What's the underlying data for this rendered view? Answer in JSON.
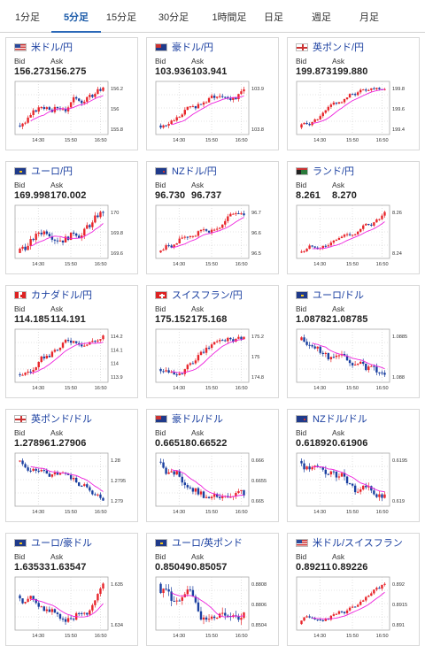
{
  "tabs": [
    "1分足",
    "5分足",
    "15分足",
    "30分足",
    "1時間足",
    "日足",
    "週足",
    "月足"
  ],
  "active_tab": 1,
  "labels": {
    "bid": "Bid",
    "ask": "Ask"
  },
  "colors": {
    "up": "#e8252b",
    "down": "#1a3fa0",
    "ma_pink": "#ee22dd",
    "ma_cyan": "#39b8d8",
    "pair": "#1a3fa0",
    "tab_active": "#1a5aa8"
  },
  "cards": [
    {
      "pair": "米ドル/円",
      "flag": "us",
      "bid": "156.273",
      "ask": "156.275",
      "yticks": [
        "156.2",
        "156",
        "155.8"
      ],
      "trend": "up"
    },
    {
      "pair": "豪ドル/円",
      "flag": "au",
      "bid": "103.936",
      "ask": "103.941",
      "yticks": [
        "103.9",
        "103.8"
      ],
      "trend": "up"
    },
    {
      "pair": "英ポンド/円",
      "flag": "gb",
      "bid": "199.873",
      "ask": "199.880",
      "yticks": [
        "199.8",
        "199.6",
        "199.4"
      ],
      "trend": "up"
    },
    {
      "pair": "ユーロ/円",
      "flag": "eu",
      "bid": "169.998",
      "ask": "170.002",
      "yticks": [
        "170",
        "169.8",
        "169.6"
      ],
      "trend": "up"
    },
    {
      "pair": "NZドル/円",
      "flag": "nz",
      "bid": "96.730",
      "ask": "96.737",
      "yticks": [
        "96.7",
        "96.6",
        "96.5"
      ],
      "trend": "up"
    },
    {
      "pair": "ランド/円",
      "flag": "za",
      "bid": "8.261",
      "ask": "8.270",
      "yticks": [
        "8.26",
        "8.24"
      ],
      "trend": "up"
    },
    {
      "pair": "カナダドル/円",
      "flag": "ca",
      "bid": "114.185",
      "ask": "114.191",
      "yticks": [
        "114.2",
        "114.1",
        "114",
        "113.9"
      ],
      "trend": "up"
    },
    {
      "pair": "スイスフラン/円",
      "flag": "ch",
      "bid": "175.152",
      "ask": "175.168",
      "yticks": [
        "175.2",
        "175",
        "174.8"
      ],
      "trend": "up"
    },
    {
      "pair": "ユーロ/ドル",
      "flag": "eu",
      "bid": "1.08782",
      "ask": "1.08785",
      "yticks": [
        "1.0885",
        "1.088"
      ],
      "trend": "down"
    },
    {
      "pair": "英ポンド/ドル",
      "flag": "gb",
      "bid": "1.27896",
      "ask": "1.27906",
      "yticks": [
        "1.28",
        "1.2795",
        "1.279"
      ],
      "trend": "down"
    },
    {
      "pair": "豪ドル/ドル",
      "flag": "au",
      "bid": "0.66518",
      "ask": "0.66522",
      "yticks": [
        "0.666",
        "0.6655",
        "0.665"
      ],
      "trend": "down"
    },
    {
      "pair": "NZドル/ドル",
      "flag": "nz",
      "bid": "0.61892",
      "ask": "0.61906",
      "yticks": [
        "0.6195",
        "0.619"
      ],
      "trend": "down"
    },
    {
      "pair": "ユーロ/豪ドル",
      "flag": "eu",
      "bid": "1.63533",
      "ask": "1.63547",
      "yticks": [
        "1.635",
        "1.634"
      ],
      "trend": "vup"
    },
    {
      "pair": "ユーロ/英ポンド",
      "flag": "eu",
      "bid": "0.85049",
      "ask": "0.85057",
      "yticks": [
        "0.8808",
        "0.8806",
        "0.8504"
      ],
      "trend": "vdown"
    },
    {
      "pair": "米ドル/スイスフラン",
      "flag": "us",
      "bid": "0.89211",
      "ask": "0.89226",
      "yticks": [
        "0.892",
        "0.8915",
        "0.891"
      ],
      "trend": "up"
    }
  ],
  "xticks": [
    "14:30",
    "15:50",
    "16:50"
  ]
}
